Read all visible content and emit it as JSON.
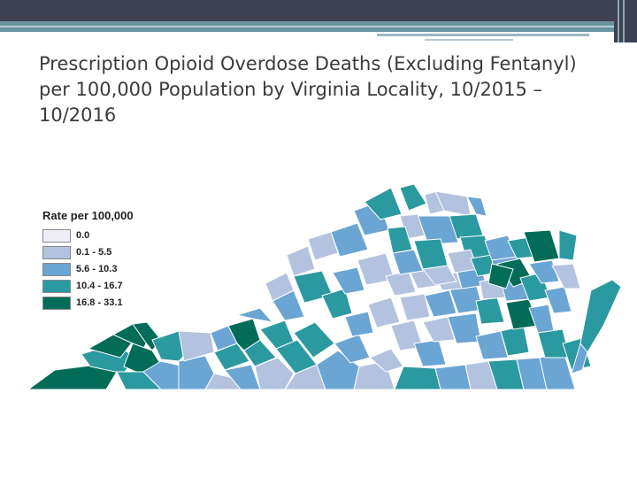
{
  "slide": {
    "title": "Prescription Opioid Overdose Deaths (Excluding Fentanyl) per 100,000 Population by Virginia Locality, 10/2015 – 10/2016"
  },
  "legend": {
    "title": "Rate per 100,000",
    "items": [
      {
        "label": "0.0",
        "color": "#f0eef5"
      },
      {
        "label": "0.1 - 5.5",
        "color": "#b3c3df"
      },
      {
        "label": "5.6 - 10.3",
        "color": "#6ba5d3"
      },
      {
        "label": "10.4 - 16.7",
        "color": "#2a9aa0"
      },
      {
        "label": "16.8 - 33.1",
        "color": "#036c59"
      }
    ]
  },
  "colors": {
    "header": "#3e4150",
    "accent": "#6b94a3",
    "title_text": "#3b3b3b",
    "map_border": "#ffffff"
  }
}
